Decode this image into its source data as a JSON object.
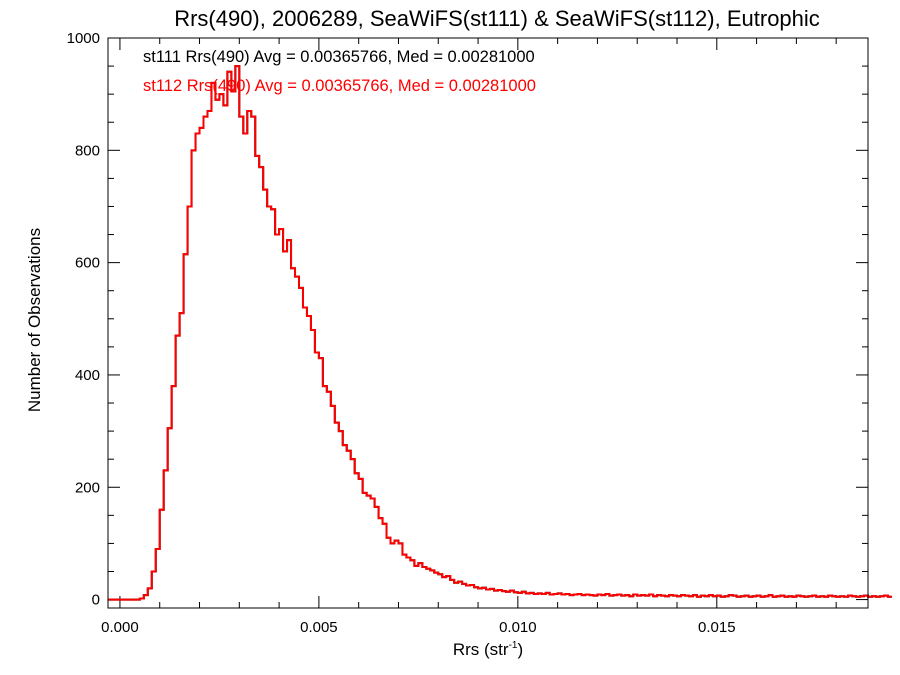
{
  "chart_data": {
    "type": "histogram",
    "title": "Rrs(490), 2006289, SeaWiFS(st111) & SeaWiFS(st112), Eutrophic",
    "xlabel": {
      "base": "Rrs (str",
      "sup": "-1",
      "end": ")"
    },
    "ylabel": "Number of Observations",
    "xlim": [
      -0.0003,
      0.0188
    ],
    "ylim": [
      -15,
      1000
    ],
    "xticks": [
      0.0,
      0.005,
      0.01,
      0.015
    ],
    "xtick_labels": [
      "0.000",
      "0.005",
      "0.010",
      "0.015"
    ],
    "yticks": [
      0,
      200,
      400,
      600,
      800,
      1000
    ],
    "ytick_labels": [
      "0",
      "200",
      "400",
      "600",
      "800",
      "1000"
    ],
    "grid": false,
    "legend_position": "top-left",
    "bin_start": 0.0,
    "bin_width": 0.0001,
    "series": [
      {
        "name": "st111",
        "label": "st111 Rrs(490) Avg = 0.00365766, Med = 0.00281000",
        "color": "#000000",
        "values": [
          0,
          0,
          0,
          0,
          0,
          2,
          8,
          20,
          50,
          90,
          160,
          230,
          305,
          380,
          470,
          510,
          615,
          700,
          800,
          830,
          840,
          860,
          870,
          920,
          890,
          900,
          880,
          940,
          905,
          950,
          860,
          830,
          870,
          860,
          790,
          770,
          730,
          700,
          695,
          650,
          660,
          620,
          640,
          590,
          575,
          555,
          520,
          505,
          480,
          440,
          430,
          380,
          370,
          345,
          315,
          300,
          275,
          265,
          250,
          225,
          215,
          190,
          185,
          180,
          165,
          145,
          135,
          110,
          100,
          105,
          100,
          80,
          75,
          70,
          60,
          65,
          58,
          55,
          52,
          48,
          45,
          40,
          42,
          35,
          30,
          32,
          28,
          25,
          26,
          22,
          20,
          21,
          18,
          19,
          16,
          17,
          15,
          14,
          16,
          13,
          12,
          14,
          11,
          12,
          10,
          11,
          10,
          12,
          9,
          10,
          11,
          9,
          10,
          8,
          9,
          10,
          8,
          9,
          8,
          7,
          9,
          8,
          10,
          7,
          8,
          9,
          7,
          8,
          6,
          9,
          7,
          8,
          7,
          9,
          6,
          8,
          7,
          6,
          8,
          7,
          6,
          8,
          7,
          6,
          8,
          5,
          7,
          6,
          8,
          6,
          7,
          5,
          6,
          8,
          7,
          5,
          6,
          7,
          5,
          6,
          7,
          5,
          6,
          8,
          5,
          6,
          7,
          5,
          6,
          5,
          7,
          6,
          5,
          6,
          7,
          5,
          6,
          5,
          7,
          6,
          5,
          6,
          5,
          7,
          6,
          5,
          6,
          7,
          5,
          6,
          5,
          6,
          7,
          5
        ]
      },
      {
        "name": "st112",
        "label": "st112 Rrs(490) Avg = 0.00365766, Med = 0.00281000",
        "color": "#ff0000",
        "values": [
          0,
          0,
          0,
          0,
          0,
          2,
          8,
          20,
          50,
          90,
          160,
          230,
          305,
          380,
          470,
          510,
          615,
          700,
          800,
          830,
          840,
          860,
          870,
          920,
          890,
          900,
          880,
          940,
          905,
          950,
          860,
          830,
          870,
          860,
          790,
          770,
          730,
          700,
          695,
          650,
          660,
          620,
          640,
          590,
          575,
          555,
          520,
          505,
          480,
          440,
          430,
          380,
          370,
          345,
          315,
          300,
          275,
          265,
          250,
          225,
          215,
          190,
          185,
          180,
          165,
          145,
          135,
          110,
          100,
          105,
          100,
          80,
          75,
          70,
          60,
          65,
          58,
          55,
          52,
          48,
          45,
          40,
          42,
          35,
          30,
          32,
          28,
          25,
          26,
          22,
          20,
          21,
          18,
          19,
          16,
          17,
          15,
          14,
          16,
          13,
          12,
          14,
          11,
          12,
          10,
          11,
          10,
          12,
          9,
          10,
          11,
          9,
          10,
          8,
          9,
          10,
          8,
          9,
          8,
          7,
          9,
          8,
          10,
          7,
          8,
          9,
          7,
          8,
          6,
          9,
          7,
          8,
          7,
          9,
          6,
          8,
          7,
          6,
          8,
          7,
          6,
          8,
          7,
          6,
          8,
          5,
          7,
          6,
          8,
          6,
          7,
          5,
          6,
          8,
          7,
          5,
          6,
          7,
          5,
          6,
          7,
          5,
          6,
          8,
          5,
          6,
          7,
          5,
          6,
          5,
          7,
          6,
          5,
          6,
          7,
          5,
          6,
          5,
          7,
          6,
          5,
          6,
          5,
          7,
          6,
          5,
          6,
          7,
          5,
          6,
          5,
          6,
          7,
          5
        ]
      }
    ]
  }
}
